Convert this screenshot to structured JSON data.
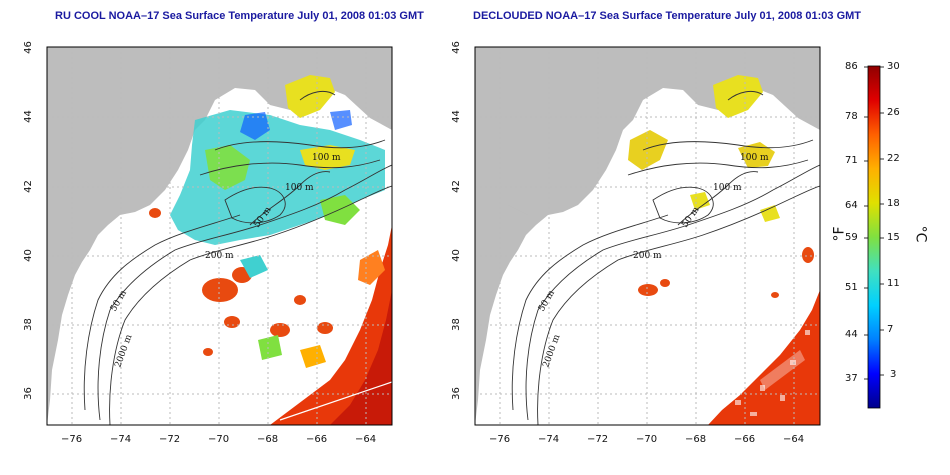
{
  "panels": [
    {
      "id": "left",
      "title": "RU COOL NOAA–17 Sea Surface Temperature July 01, 2008 01:03 GMT",
      "contour_labels": [
        "100 m",
        "100 m",
        "50 m",
        "200 m",
        "50 m",
        "2000 m"
      ]
    },
    {
      "id": "right",
      "title": "DECLOUDED NOAA–17 Sea Surface Temperature July 01, 2008 01:03 GMT",
      "contour_labels": [
        "100 m",
        "100 m",
        "50 m",
        "200 m",
        "50 m",
        "2000 m"
      ]
    }
  ],
  "axes": {
    "x_ticks": [
      "−76",
      "−74",
      "−72",
      "−70",
      "−68",
      "−66",
      "−64"
    ],
    "y_ticks": [
      "36",
      "38",
      "40",
      "42",
      "44",
      "46"
    ]
  },
  "colorbar": {
    "fahrenheit_ticks": [
      "86",
      "78",
      "71",
      "64",
      "59",
      "51",
      "44",
      "37"
    ],
    "celsius_ticks": [
      "30",
      "26",
      "22",
      "18",
      "15",
      "11",
      "7",
      "3"
    ],
    "fahrenheit_unit": "°F",
    "celsius_unit": "°C",
    "colors": [
      "#00008b",
      "#0000ff",
      "#0080ff",
      "#00d0ff",
      "#40e0c0",
      "#80e040",
      "#e0e000",
      "#ffb000",
      "#ff6000",
      "#e00000",
      "#900000"
    ]
  },
  "colors": {
    "land": "#bdbdbd",
    "ocean": "#ffffff",
    "title": "#1a1aa0",
    "grid": "#bbbbbb"
  }
}
